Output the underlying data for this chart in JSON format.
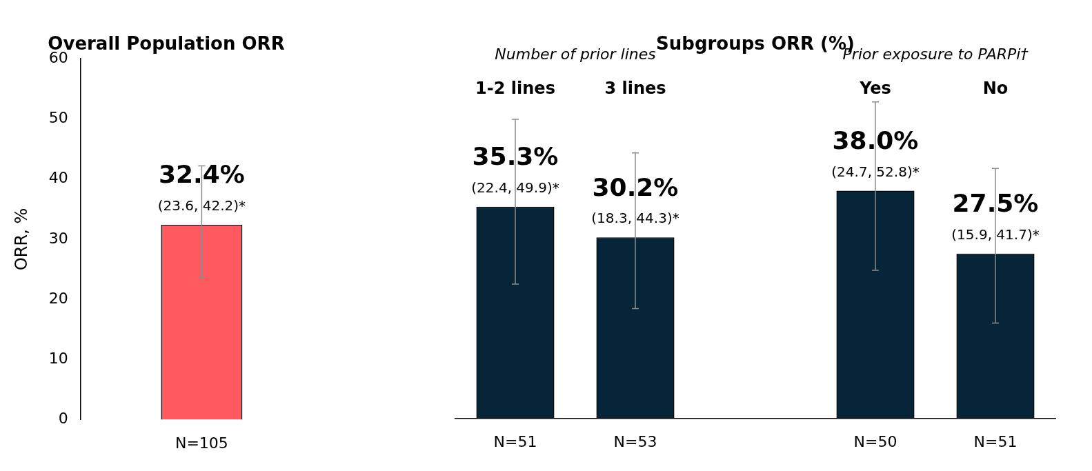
{
  "chart_data": [
    {
      "type": "bar",
      "title": "Overall Population ORR",
      "ylabel": "ORR, %",
      "categories": [
        "N=105"
      ],
      "values": [
        32.4
      ],
      "color": "#ff5a5f",
      "errors": [
        [
          23.6,
          42.2
        ]
      ],
      "value_labels": [
        "32.4%"
      ],
      "ylim": [
        0,
        60
      ],
      "yticks": [
        0,
        10,
        20,
        30,
        40,
        50,
        60
      ],
      "grid": false,
      "annotations": [
        "(23.6, 42.2)*"
      ]
    },
    {
      "type": "bar",
      "title": "Subgroups ORR (%)",
      "categories": [
        "N=51",
        "N=53",
        null,
        "N=50",
        "N=51"
      ],
      "values": [
        35.3,
        30.2,
        null,
        38.0,
        27.5
      ],
      "color": "#062538",
      "errors": [
        [
          22.4,
          49.9
        ],
        [
          18.3,
          44.3
        ],
        null,
        [
          24.7,
          52.8
        ],
        [
          15.9,
          41.7
        ]
      ],
      "value_labels": [
        "35.3%",
        "30.2%",
        null,
        "38.0%",
        "27.5%"
      ],
      "ylim": [
        0,
        60
      ],
      "tick_labels": "x",
      "grid": false,
      "annotations": [
        "Number of prior lines",
        "Prior exposure to PARPi†",
        "1-2 lines",
        "3 lines",
        "Yes",
        "No",
        "(22.4, 49.9)*",
        "(18.3, 44.3)*",
        "(24.7, 52.8)*",
        "(15.9, 41.7)*"
      ]
    }
  ]
}
